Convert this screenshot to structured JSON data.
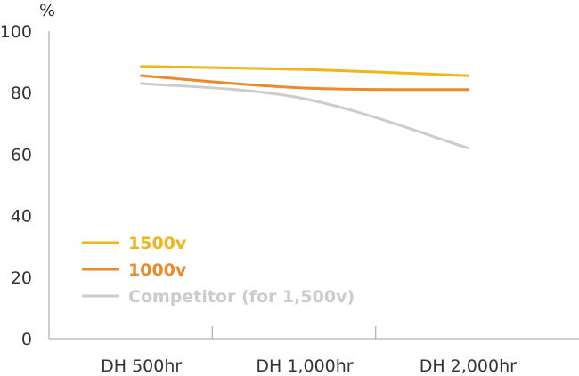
{
  "chart_data": {
    "type": "line",
    "unit_label": "%",
    "categories": [
      "DH 500hr",
      "DH 1,000hr",
      "DH 2,000hr"
    ],
    "ylim": [
      0,
      100
    ],
    "yticks": [
      "0",
      "20",
      "40",
      "60",
      "80",
      "100"
    ],
    "grid": false,
    "legend_position": "bottom-left",
    "series": [
      {
        "name": "1500v",
        "values": [
          88.5,
          87.5,
          85.5
        ],
        "color": "#f2b41b"
      },
      {
        "name": "1000v",
        "values": [
          85.5,
          81.5,
          81
        ],
        "color": "#ea8a2d"
      },
      {
        "name": "Competitor (for 1,500v)",
        "values": [
          83,
          78,
          62
        ],
        "color": "#cccccc"
      }
    ]
  }
}
